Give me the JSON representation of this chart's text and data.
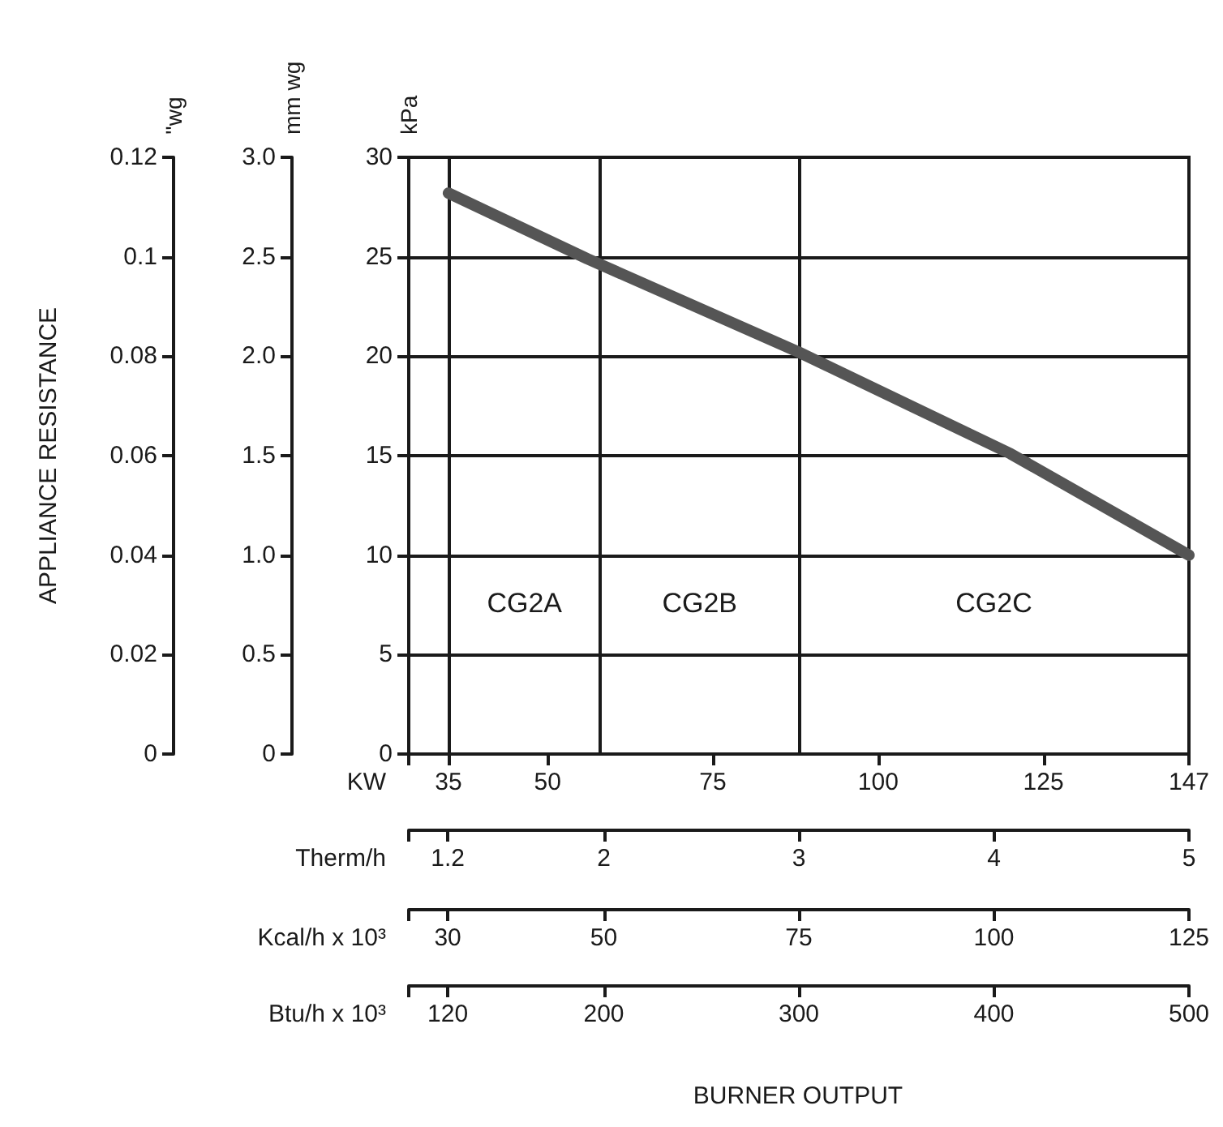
{
  "chart_data": {
    "type": "line",
    "xlabel": "KW",
    "ylabel": "kPa",
    "y2label": "mm wg",
    "x2label": "Therm/h",
    "x": [
      35,
      56,
      88,
      120,
      147
    ],
    "values": [
      28.2,
      24.9,
      20.2,
      15.1,
      10.0
    ],
    "color": "#555555",
    "xlim": [
      29,
      147
    ],
    "xticks": [
      {
        "value": 29,
        "label": null
      },
      35,
      50,
      75,
      100,
      125,
      147
    ],
    "x2lim": [
      1,
      5
    ],
    "x2ticks": [
      {
        "value": 1,
        "label": null
      },
      1.2,
      2,
      3,
      4,
      5
    ],
    "ylim": [
      0,
      30
    ],
    "yticks": [
      0,
      5,
      10,
      15,
      20,
      25,
      30
    ],
    "y2lim": [
      0,
      3
    ],
    "y2ticks": [
      {
        "value": 0,
        "label": "0"
      },
      {
        "value": 0.5,
        "label": "0.5"
      },
      {
        "value": 1,
        "label": "1.0"
      },
      {
        "value": 1.5,
        "label": "1.5"
      },
      {
        "value": 2,
        "label": "2.0"
      },
      {
        "value": 2.5,
        "label": "2.5"
      },
      {
        "value": 3,
        "label": "3.0"
      }
    ],
    "grid": "y",
    "ref_lines": [
      {
        "axis": "x",
        "value": 35
      },
      {
        "axis": "x",
        "value": 58
      },
      {
        "axis": "x",
        "value": 88
      }
    ],
    "annotations": [
      "APPLIANCE RESISTANCE",
      "BURNER OUTPUT",
      "''wg",
      "0",
      "0.02",
      "0.04",
      "0.06",
      "0.08",
      "0.1",
      "0.12",
      "Kcal/h x 10³",
      "30",
      "50",
      "75",
      "100",
      "125",
      "Btu/h x 10³",
      "120",
      "200",
      "300",
      "400",
      "500",
      "CG2A",
      "CG2B",
      "CG2C"
    ]
  }
}
